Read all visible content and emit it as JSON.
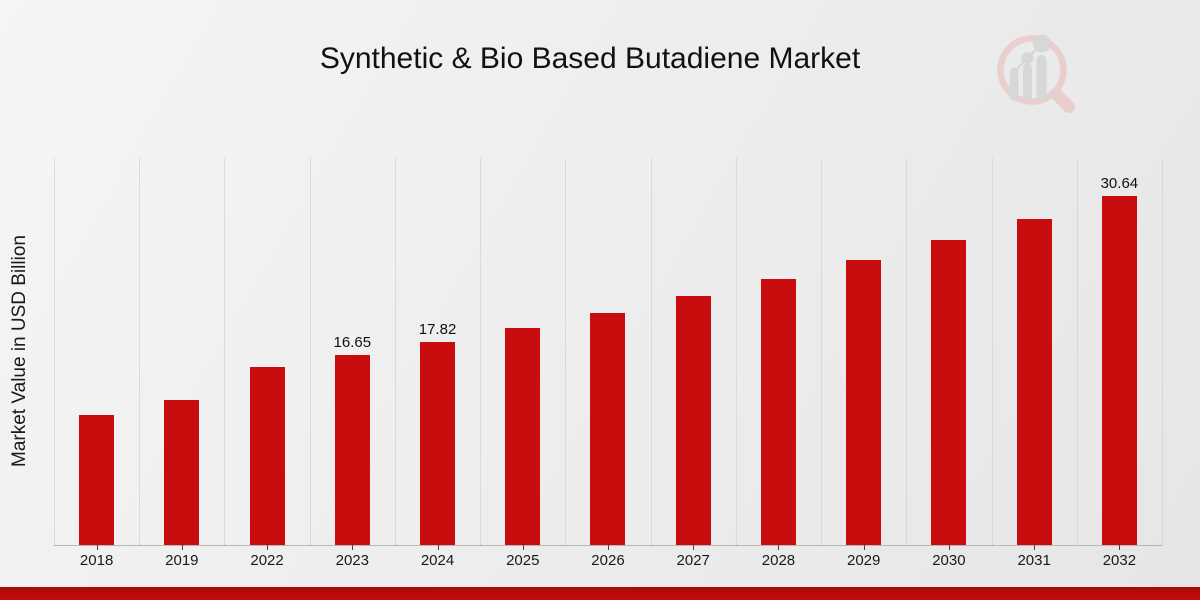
{
  "header": {
    "title": "Synthetic & Bio Based Butadiene Market"
  },
  "y_axis": {
    "label": "Market Value in USD Billion"
  },
  "watermark": {
    "icon": "magnifier-growth-chart-logo-icon"
  },
  "colors": {
    "bar": "#c90c0d",
    "text": "#111111",
    "gridline": "#c6c6c6",
    "baseline": "#b7b7b7",
    "tick": "#444444",
    "footer_accent": "#c40c0c",
    "logo_ring_pink": "#e9cccc",
    "logo_bars_gray": "#d5d5d5",
    "background_light": "#f5f5f5",
    "background_dark": "#e6e6e6"
  },
  "chart_data": {
    "type": "bar",
    "title": "Synthetic & Bio Based Butadiene Market",
    "xlabel": "",
    "ylabel": "Market Value in USD Billion",
    "categories": [
      "2018",
      "2019",
      "2022",
      "2023",
      "2024",
      "2025",
      "2026",
      "2027",
      "2028",
      "2029",
      "2030",
      "2031",
      "2032"
    ],
    "values": [
      11.42,
      12.78,
      15.66,
      16.65,
      17.82,
      19.07,
      20.41,
      21.84,
      23.37,
      25.01,
      26.76,
      28.64,
      30.64
    ],
    "bar_labels": [
      "",
      "",
      "",
      "16.65",
      "17.82",
      "",
      "",
      "",
      "",
      "",
      "",
      "",
      "30.64"
    ],
    "ylim": [
      0,
      34
    ],
    "y_tick_labels": "none",
    "grid": "vertical dotted lines at category boundaries",
    "legend": "none",
    "bar_color": "#c90c0d"
  }
}
